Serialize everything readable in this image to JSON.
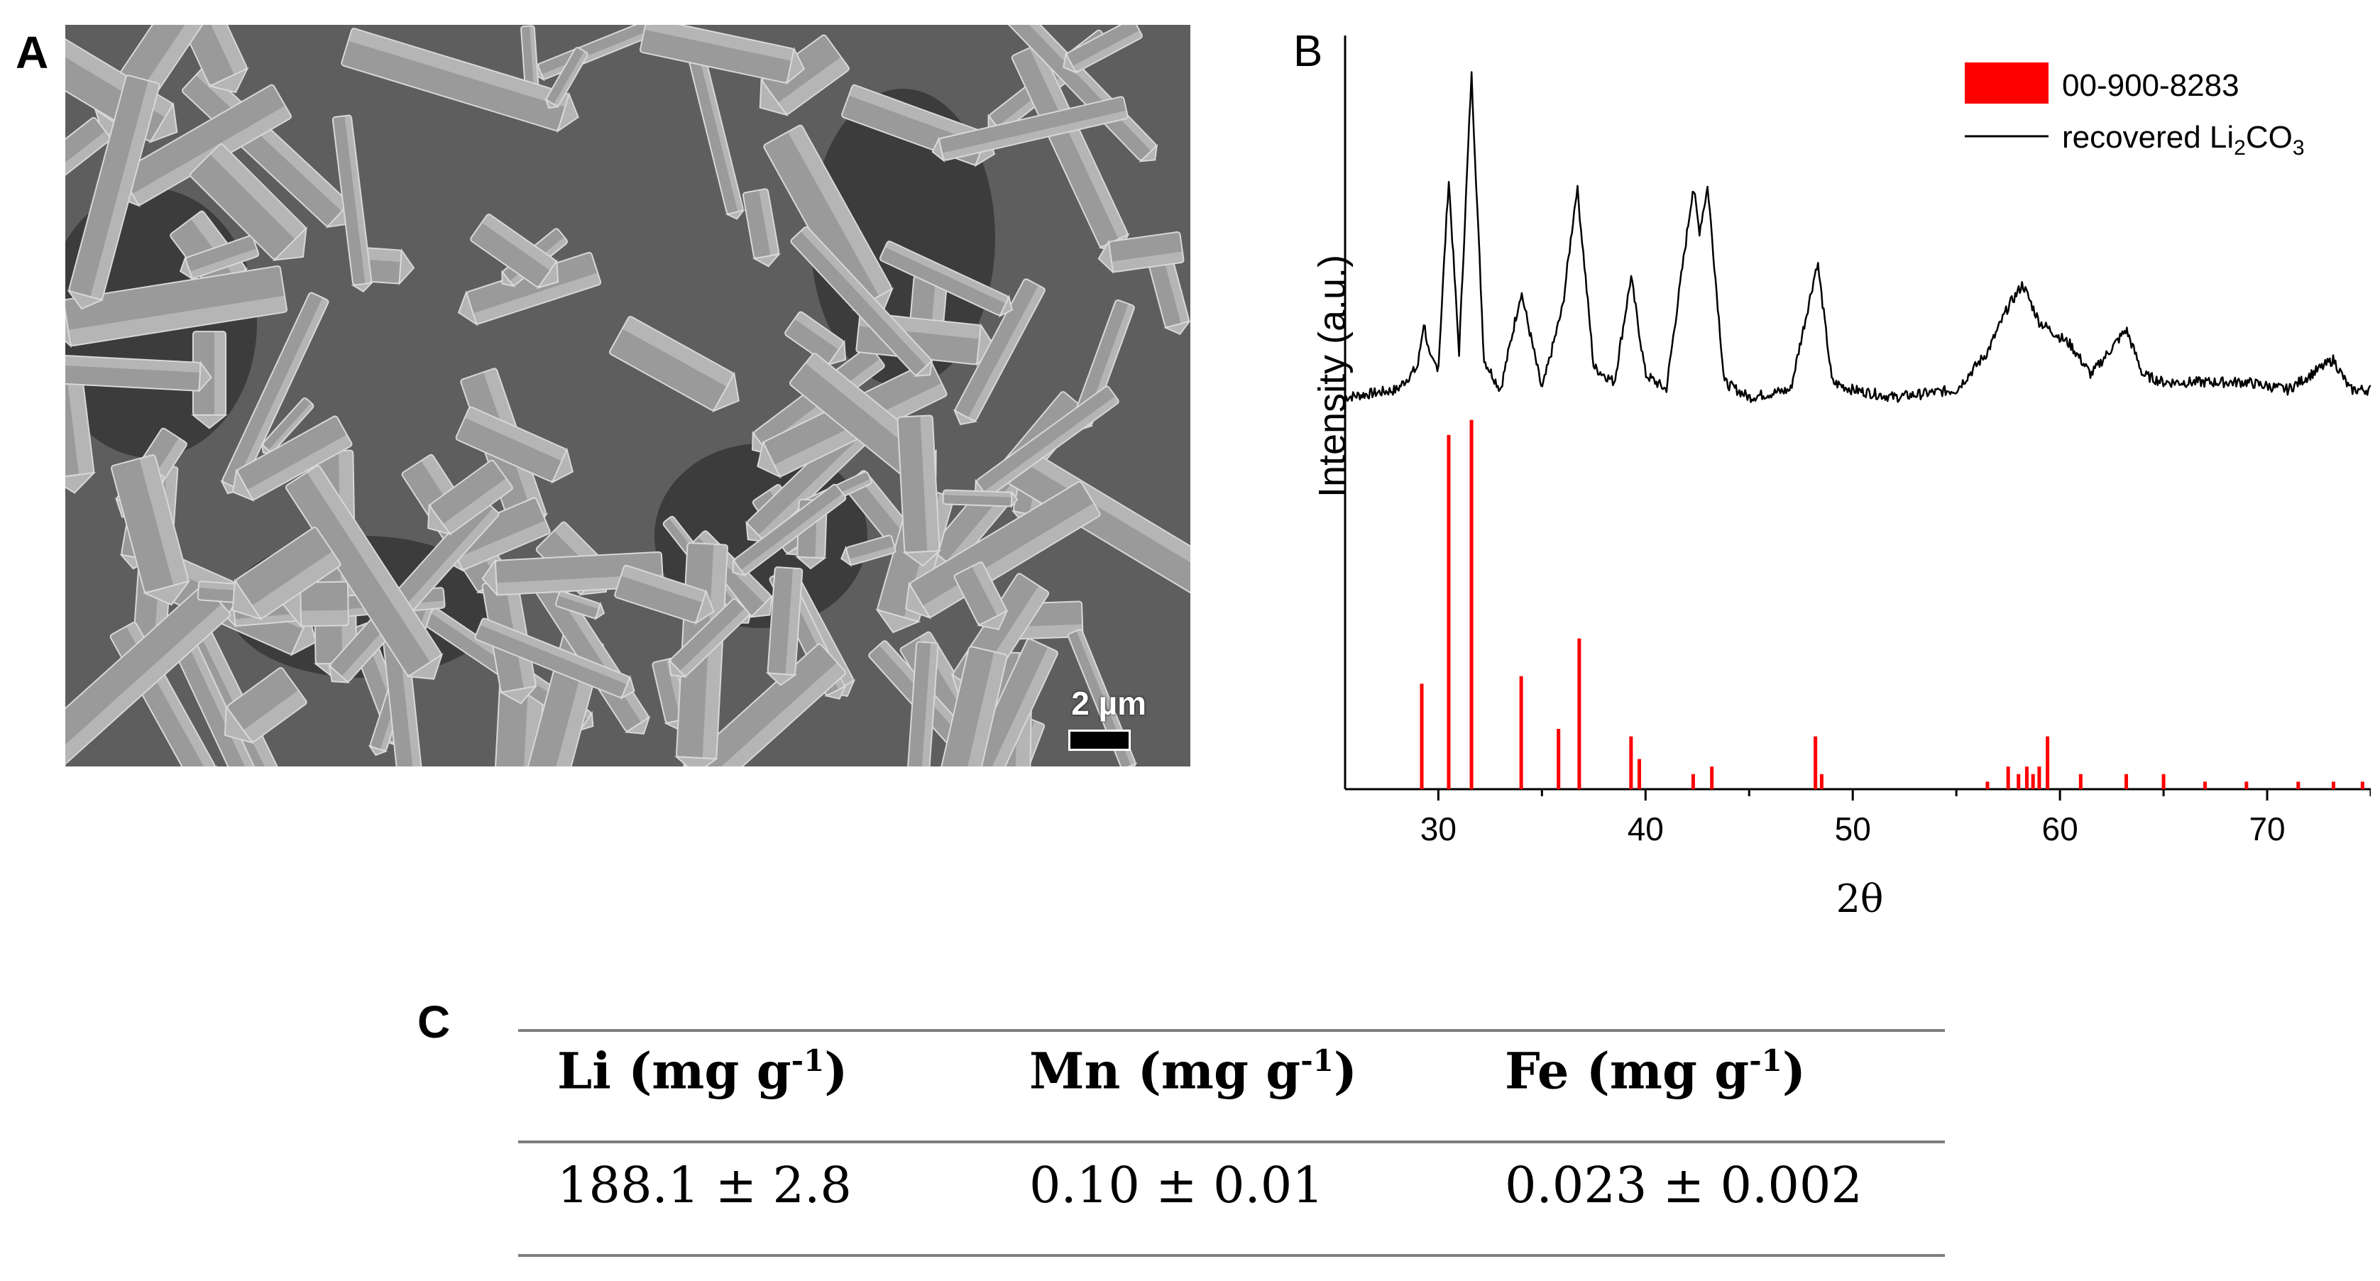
{
  "panel_labels": {
    "a": "A",
    "b": "B",
    "c": "C"
  },
  "sem_image": {
    "scale_label": "2 µm",
    "colors": {
      "background": "#5e5e5e",
      "crystal_face": "#9a9a9a",
      "crystal_edge": "#d8d8d8",
      "shadow": "#2e2e2e"
    }
  },
  "chart_data": {
    "type": "line",
    "title": "",
    "xlabel": "2θ",
    "ylabel": "Intensity (a.u.)",
    "xlim": [
      25.5,
      75
    ],
    "x_ticks": [
      30,
      40,
      50,
      60,
      70
    ],
    "y_ticks": "none",
    "grid": false,
    "legend_position": "top-right",
    "series": [
      {
        "name": "recovered Li2CO3",
        "kind": "line",
        "color": "#000000",
        "baseline": 0.52,
        "x": [
          25.5,
          28.0,
          29.0,
          29.3,
          29.6,
          30.0,
          30.5,
          31.0,
          31.6,
          32.2,
          33.0,
          34.0,
          35.0,
          36.0,
          36.7,
          37.5,
          38.5,
          39.3,
          40.0,
          41.0,
          42.3,
          42.6,
          43.0,
          43.8,
          45.0,
          47.0,
          48.3,
          49.0,
          50.0,
          52.0,
          55.0,
          56.5,
          57.5,
          58.2,
          59.0,
          60.5,
          61.5,
          63.2,
          64.0,
          65.0,
          67.0,
          69.0,
          71.0,
          73.2,
          74.0,
          75.0
        ],
        "y": [
          0.52,
          0.53,
          0.56,
          0.62,
          0.57,
          0.56,
          0.81,
          0.58,
          0.95,
          0.57,
          0.53,
          0.66,
          0.53,
          0.64,
          0.8,
          0.56,
          0.54,
          0.68,
          0.55,
          0.53,
          0.8,
          0.74,
          0.8,
          0.54,
          0.52,
          0.53,
          0.7,
          0.54,
          0.53,
          0.52,
          0.53,
          0.58,
          0.64,
          0.67,
          0.62,
          0.59,
          0.55,
          0.61,
          0.55,
          0.54,
          0.54,
          0.54,
          0.53,
          0.57,
          0.53,
          0.53
        ]
      },
      {
        "name": "00-900-8283",
        "kind": "stick",
        "color": "#ff0000",
        "x": [
          29.2,
          30.5,
          31.6,
          34.0,
          35.8,
          36.8,
          39.3,
          39.7,
          42.3,
          43.2,
          48.2,
          48.5,
          56.5,
          57.5,
          58.0,
          58.4,
          58.7,
          59.0,
          59.4,
          61.0,
          63.2,
          65.0,
          67.0,
          69.0,
          71.5,
          73.2,
          74.6
        ],
        "y": [
          0.14,
          0.47,
          0.49,
          0.15,
          0.08,
          0.2,
          0.07,
          0.04,
          0.02,
          0.03,
          0.07,
          0.02,
          0.01,
          0.03,
          0.02,
          0.03,
          0.02,
          0.03,
          0.07,
          0.02,
          0.02,
          0.02,
          0.01,
          0.01,
          0.01,
          0.01,
          0.01
        ]
      }
    ]
  },
  "legend": {
    "items": [
      {
        "label": "00-900-8283",
        "swatch": "red-box"
      },
      {
        "label_prefix": "recovered Li",
        "sub1": "2",
        "label_mid": "CO",
        "sub2": "3",
        "swatch": "black-line"
      }
    ]
  },
  "table": {
    "headers": [
      {
        "element": "Li",
        "unit": "(mg g",
        "exp": "-1",
        "close": ")"
      },
      {
        "element": "Mn",
        "unit": "(mg g",
        "exp": "-1",
        "close": ")"
      },
      {
        "element": "Fe",
        "unit": "(mg g",
        "exp": "-1",
        "close": ")"
      }
    ],
    "values": [
      "188.1 ± 2.8",
      "0.10 ± 0.01",
      "0.023 ± 0.002"
    ]
  }
}
